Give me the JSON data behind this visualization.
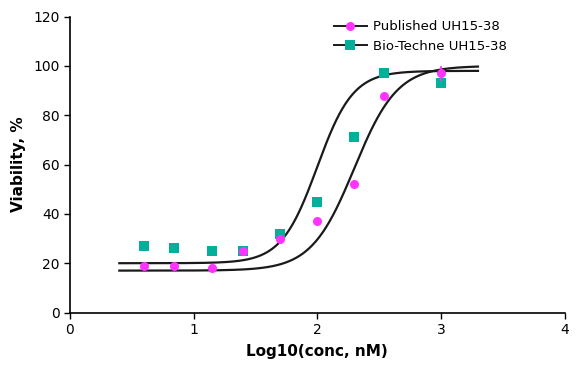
{
  "title": "",
  "xlabel": "Log10(conc, nM)",
  "ylabel": "Viability, %",
  "xlim": [
    0,
    4
  ],
  "ylim": [
    0,
    120
  ],
  "xticks": [
    0,
    1,
    2,
    3,
    4
  ],
  "yticks": [
    0,
    20,
    40,
    60,
    80,
    100,
    120
  ],
  "published_x": [
    0.602,
    0.845,
    1.146,
    1.398,
    1.699,
    2.0,
    2.301,
    2.544,
    3.0
  ],
  "published_y": [
    19,
    19,
    18,
    25,
    30,
    37,
    52,
    88,
    97
  ],
  "published_yerr": [
    0,
    0,
    0,
    0,
    0,
    0,
    0,
    0,
    3
  ],
  "published_color": "#FF33FF",
  "published_label": "Published UH15-38",
  "biotechne_x": [
    0.602,
    0.845,
    1.146,
    1.398,
    1.699,
    2.0,
    2.301,
    2.544,
    3.0
  ],
  "biotechne_y": [
    27,
    26,
    25,
    25,
    32,
    45,
    71,
    97,
    93
  ],
  "biotechne_yerr": [
    0,
    0,
    0,
    0,
    0,
    0,
    0,
    2,
    0
  ],
  "biotechne_color": "#00B09A",
  "biotechne_label": "Bio-Techne UH15-38",
  "curve_color": "#1A1A1A",
  "curve_linewidth": 1.6,
  "marker_size": 6.5,
  "background_color": "#FFFFFF",
  "legend_fontsize": 9.5,
  "axis_fontsize": 11,
  "tick_fontsize": 10,
  "font_family": "DejaVu Sans"
}
